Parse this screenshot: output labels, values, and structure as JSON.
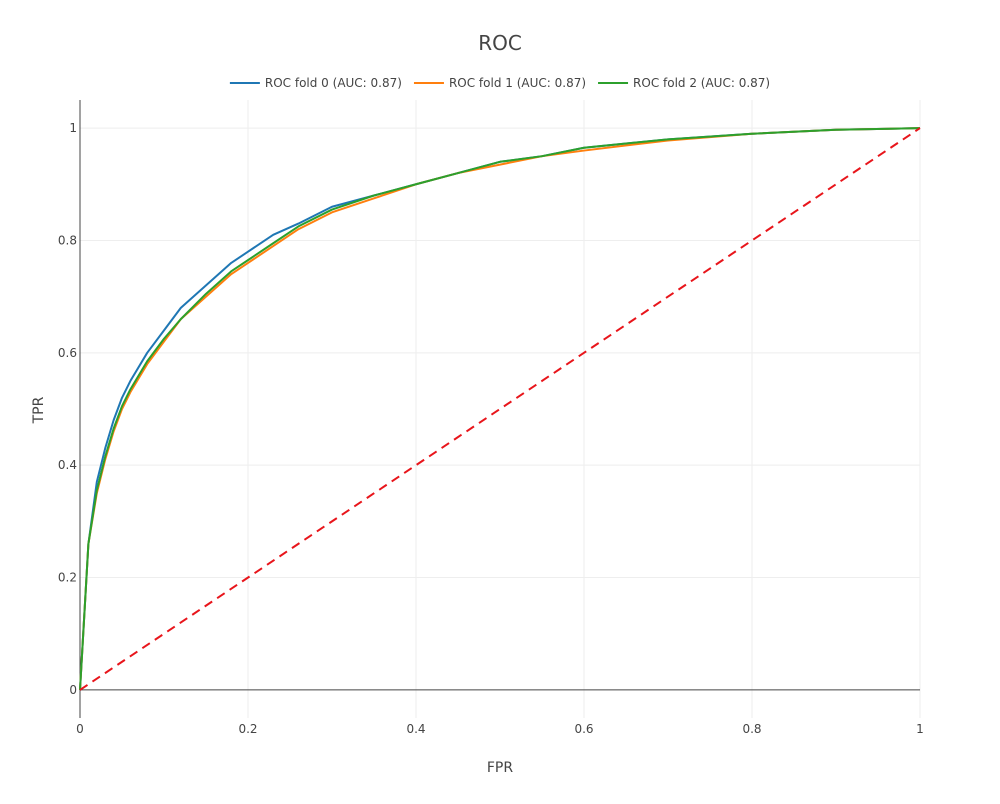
{
  "chart_data": {
    "type": "line",
    "title": "ROC",
    "xlabel": "FPR",
    "ylabel": "TPR",
    "xlim": [
      0,
      1
    ],
    "ylim": [
      -0.05,
      1.05
    ],
    "x_ticks": [
      0,
      0.2,
      0.4,
      0.6,
      0.8,
      1
    ],
    "x_tick_labels": [
      "0",
      "0.2",
      "0.4",
      "0.6",
      "0.8",
      "1"
    ],
    "y_ticks": [
      0,
      0.2,
      0.4,
      0.6,
      0.8,
      1
    ],
    "y_tick_labels": [
      "0",
      "0.2",
      "0.4",
      "0.6",
      "0.8",
      "1"
    ],
    "grid": true,
    "legend_position": "top-center",
    "series": [
      {
        "name": "ROC fold 0 (AUC: 0.87)",
        "color": "#1f77b4",
        "dash": "solid",
        "x": [
          0,
          0.01,
          0.02,
          0.03,
          0.04,
          0.05,
          0.06,
          0.08,
          0.1,
          0.12,
          0.15,
          0.18,
          0.2,
          0.23,
          0.26,
          0.3,
          0.35,
          0.4,
          0.45,
          0.5,
          0.55,
          0.6,
          0.7,
          0.8,
          0.9,
          1
        ],
        "y": [
          0,
          0.26,
          0.37,
          0.43,
          0.48,
          0.52,
          0.55,
          0.6,
          0.64,
          0.68,
          0.72,
          0.76,
          0.78,
          0.81,
          0.83,
          0.86,
          0.88,
          0.9,
          0.92,
          0.94,
          0.95,
          0.965,
          0.98,
          0.99,
          0.997,
          1
        ]
      },
      {
        "name": "ROC fold 1 (AUC: 0.87)",
        "color": "#ff7f0e",
        "dash": "solid",
        "x": [
          0,
          0.01,
          0.02,
          0.03,
          0.04,
          0.05,
          0.06,
          0.08,
          0.1,
          0.12,
          0.15,
          0.18,
          0.2,
          0.23,
          0.26,
          0.3,
          0.35,
          0.4,
          0.45,
          0.5,
          0.55,
          0.6,
          0.7,
          0.8,
          0.9,
          1
        ],
        "y": [
          0,
          0.26,
          0.35,
          0.41,
          0.46,
          0.5,
          0.53,
          0.58,
          0.62,
          0.66,
          0.7,
          0.74,
          0.76,
          0.79,
          0.82,
          0.85,
          0.875,
          0.9,
          0.92,
          0.935,
          0.95,
          0.96,
          0.978,
          0.99,
          0.997,
          1
        ]
      },
      {
        "name": "ROC fold 2 (AUC: 0.87)",
        "color": "#2ca02c",
        "dash": "solid",
        "x": [
          0,
          0.01,
          0.02,
          0.03,
          0.04,
          0.05,
          0.06,
          0.08,
          0.1,
          0.12,
          0.15,
          0.18,
          0.2,
          0.23,
          0.26,
          0.3,
          0.35,
          0.4,
          0.45,
          0.5,
          0.55,
          0.6,
          0.7,
          0.8,
          0.9,
          1
        ],
        "y": [
          0,
          0.26,
          0.355,
          0.415,
          0.465,
          0.505,
          0.535,
          0.585,
          0.625,
          0.66,
          0.705,
          0.745,
          0.765,
          0.795,
          0.825,
          0.855,
          0.88,
          0.9,
          0.92,
          0.94,
          0.95,
          0.965,
          0.98,
          0.99,
          0.997,
          1
        ]
      },
      {
        "name": "",
        "color": "#e8151b",
        "dash": "dashed",
        "x": [
          0,
          1
        ],
        "y": [
          0,
          1
        ]
      }
    ]
  }
}
